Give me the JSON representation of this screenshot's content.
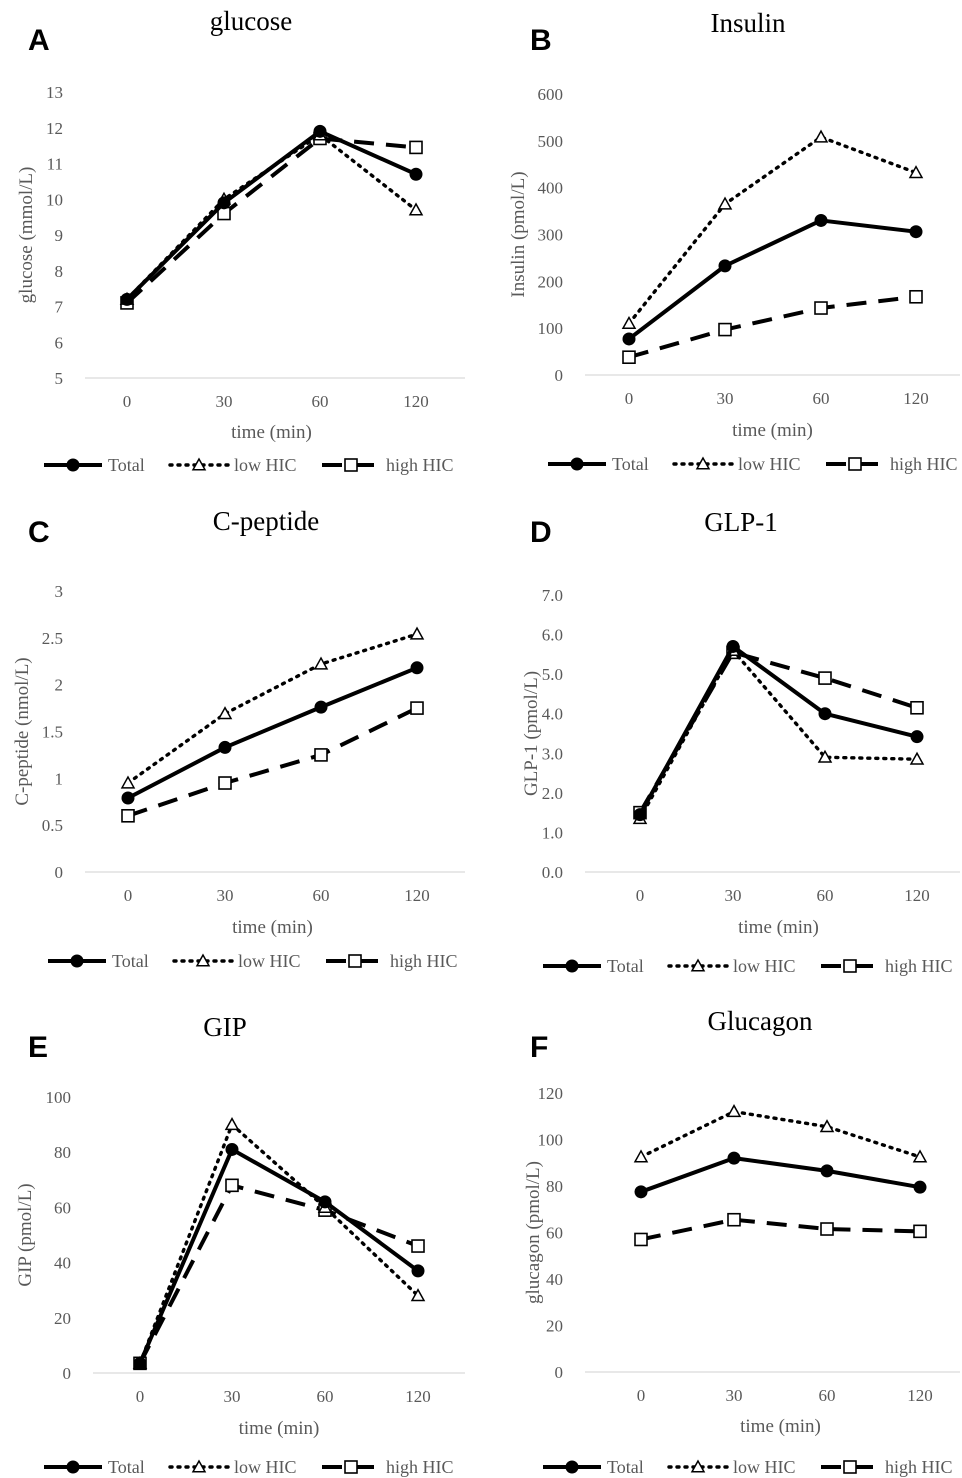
{
  "chart_data": [
    {
      "panel": "A",
      "type": "line",
      "title": "glucose",
      "xlabel": "time (min)",
      "ylabel": "glucose (mmol/L)",
      "categories": [
        "0",
        "30",
        "60",
        "120"
      ],
      "ylim": [
        5,
        13
      ],
      "yticks": [
        "5",
        "6",
        "7",
        "8",
        "9",
        "10",
        "11",
        "12",
        "13"
      ],
      "series": [
        {
          "name": "Total",
          "values": [
            7.2,
            9.9,
            11.9,
            10.7
          ]
        },
        {
          "name": "low HIC",
          "values": [
            7.2,
            10.0,
            11.8,
            9.7
          ]
        },
        {
          "name": "high HIC",
          "values": [
            7.1,
            9.6,
            11.7,
            11.45
          ]
        }
      ]
    },
    {
      "panel": "B",
      "type": "line",
      "title": "Insulin",
      "xlabel": "time (min)",
      "ylabel": "Insulin (pmol/L)",
      "categories": [
        "0",
        "30",
        "60",
        "120"
      ],
      "ylim": [
        0,
        600
      ],
      "yticks": [
        "0",
        "100",
        "200",
        "300",
        "400",
        "500",
        "600"
      ],
      "series": [
        {
          "name": "Total",
          "values": [
            77,
            233,
            330,
            306
          ]
        },
        {
          "name": "low HIC",
          "values": [
            110,
            365,
            508,
            432
          ]
        },
        {
          "name": "high HIC",
          "values": [
            38,
            97,
            143,
            167
          ]
        }
      ]
    },
    {
      "panel": "C",
      "type": "line",
      "title": "C-peptide",
      "xlabel": "time (min)",
      "ylabel": "C-peptide (nmol/L)",
      "categories": [
        "0",
        "30",
        "60",
        "120"
      ],
      "ylim": [
        0,
        3
      ],
      "yticks": [
        "0",
        "0.5",
        "1",
        "1.5",
        "2",
        "2.5",
        "3"
      ],
      "series": [
        {
          "name": "Total",
          "values": [
            0.79,
            1.33,
            1.76,
            2.18
          ]
        },
        {
          "name": "low HIC",
          "values": [
            0.95,
            1.69,
            2.22,
            2.54
          ]
        },
        {
          "name": "high HIC",
          "values": [
            0.6,
            0.95,
            1.25,
            1.75
          ]
        }
      ]
    },
    {
      "panel": "D",
      "type": "line",
      "title": "GLP-1",
      "xlabel": "time (min)",
      "ylabel": "GLP-1 (pmol/L)",
      "categories": [
        "0",
        "30",
        "60",
        "120"
      ],
      "ylim": [
        0,
        7
      ],
      "yticks": [
        "0.0",
        "1.0",
        "2.0",
        "3.0",
        "4.0",
        "5.0",
        "6.0",
        "7.0"
      ],
      "series": [
        {
          "name": "Total",
          "values": [
            1.45,
            5.7,
            4.0,
            3.42
          ]
        },
        {
          "name": "low HIC",
          "values": [
            1.35,
            5.6,
            2.9,
            2.85
          ]
        },
        {
          "name": "high HIC",
          "values": [
            1.5,
            5.55,
            4.9,
            4.15
          ]
        }
      ]
    },
    {
      "panel": "E",
      "type": "line",
      "title": "GIP",
      "xlabel": "time (min)",
      "ylabel": "GIP (pmol/L)",
      "categories": [
        "0",
        "30",
        "60",
        "120"
      ],
      "ylim": [
        0,
        100
      ],
      "yticks": [
        "0",
        "20",
        "40",
        "60",
        "80",
        "100"
      ],
      "series": [
        {
          "name": "Total",
          "values": [
            3.5,
            81,
            62,
            37
          ]
        },
        {
          "name": "low HIC",
          "values": [
            3.5,
            90,
            60,
            28
          ]
        },
        {
          "name": "high HIC",
          "values": [
            3.5,
            68,
            59,
            46
          ]
        }
      ]
    },
    {
      "panel": "F",
      "type": "line",
      "title": "Glucagon",
      "xlabel": "time (min)",
      "ylabel": "glucagon (pmol/L)",
      "categories": [
        "0",
        "30",
        "60",
        "120"
      ],
      "ylim": [
        0,
        120
      ],
      "yticks": [
        "0",
        "20",
        "40",
        "60",
        "80",
        "100",
        "120"
      ],
      "series": [
        {
          "name": "Total",
          "values": [
            77.5,
            92,
            86.5,
            79.5
          ]
        },
        {
          "name": "low HIC",
          "values": [
            92.5,
            112,
            105.5,
            92.5
          ]
        },
        {
          "name": "high HIC",
          "values": [
            57,
            65.5,
            61.5,
            60.5
          ]
        }
      ]
    }
  ]
}
